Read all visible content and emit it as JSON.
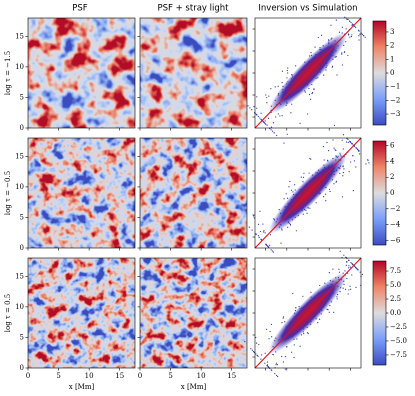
{
  "columns": [
    "PSF",
    "PSF + stray light",
    "Inversion vs Simulation"
  ],
  "xlabel": "x [Mm]",
  "axis": {
    "xlim": [
      0,
      17.5
    ],
    "ylim": [
      0,
      18
    ],
    "xticks": [
      0,
      5,
      10,
      15
    ],
    "yticks": [
      0,
      5,
      10,
      15
    ]
  },
  "rows": [
    {
      "label": "log τ = −1.5",
      "colorbar": {
        "lim": [
          -3.8,
          3.8
        ],
        "ticks": [
          {
            "value": -3,
            "label": "−3"
          },
          {
            "value": -2,
            "label": "−2"
          },
          {
            "value": -1,
            "label": "−1"
          },
          0,
          1,
          2,
          3
        ]
      }
    },
    {
      "label": "log τ = −0.5",
      "colorbar": {
        "lim": [
          -6.6,
          6.6
        ],
        "ticks": [
          {
            "value": -6,
            "label": "−6"
          },
          {
            "value": -4,
            "label": "−4"
          },
          {
            "value": -2,
            "label": "−2"
          },
          0,
          2,
          4,
          6
        ]
      }
    },
    {
      "label": "log τ = 0.5",
      "colorbar": {
        "lim": [
          -9.3,
          9.3
        ],
        "ticks": [
          {
            "value": -7.5,
            "label": "−7.5"
          },
          {
            "value": -5,
            "label": "−5.0"
          },
          {
            "value": -2.5,
            "label": "−2.5"
          },
          {
            "value": 0,
            "label": "0.0"
          },
          {
            "value": 2.5,
            "label": "2.5"
          },
          {
            "value": 5,
            "label": "5.0"
          },
          {
            "value": 7.5,
            "label": "7.5"
          }
        ]
      }
    }
  ]
}
